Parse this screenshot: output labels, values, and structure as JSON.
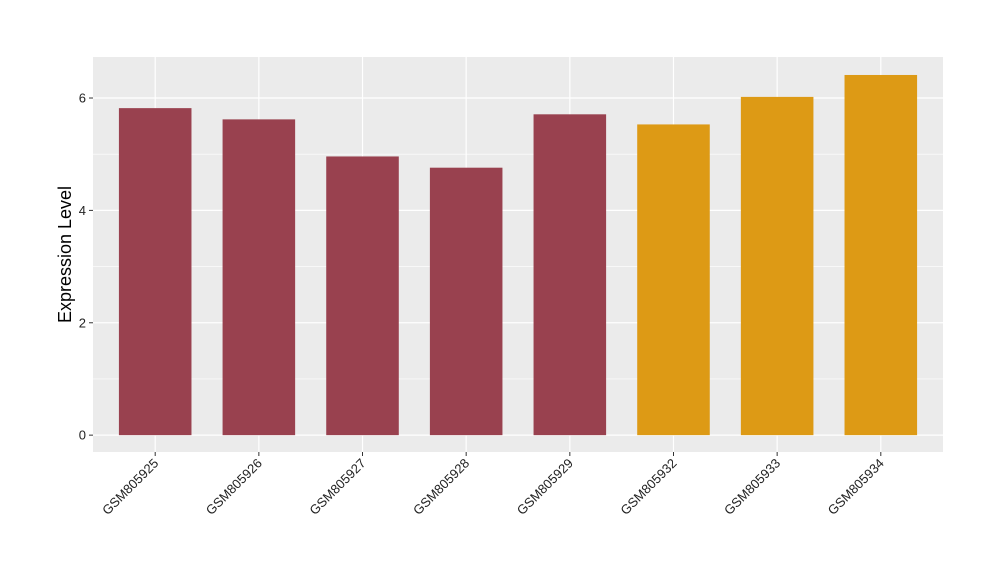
{
  "chart_data": {
    "type": "bar",
    "title": "",
    "xlabel": "",
    "ylabel": "Expression Level",
    "categories": [
      "GSM805925",
      "GSM805926",
      "GSM805927",
      "GSM805928",
      "GSM805929",
      "GSM805932",
      "GSM805933",
      "GSM805934"
    ],
    "values": [
      5.82,
      5.62,
      4.96,
      4.76,
      5.71,
      5.53,
      6.02,
      6.41
    ],
    "bar_colors": [
      "#99414f",
      "#99414f",
      "#99414f",
      "#99414f",
      "#99414f",
      "#dd9a15",
      "#dd9a15",
      "#dd9a15"
    ],
    "ylim": [
      -0.3,
      6.73
    ],
    "yticks": [
      0,
      2,
      4,
      6
    ],
    "grid": true,
    "panel_background": "#ebebeb",
    "legend": "none"
  }
}
